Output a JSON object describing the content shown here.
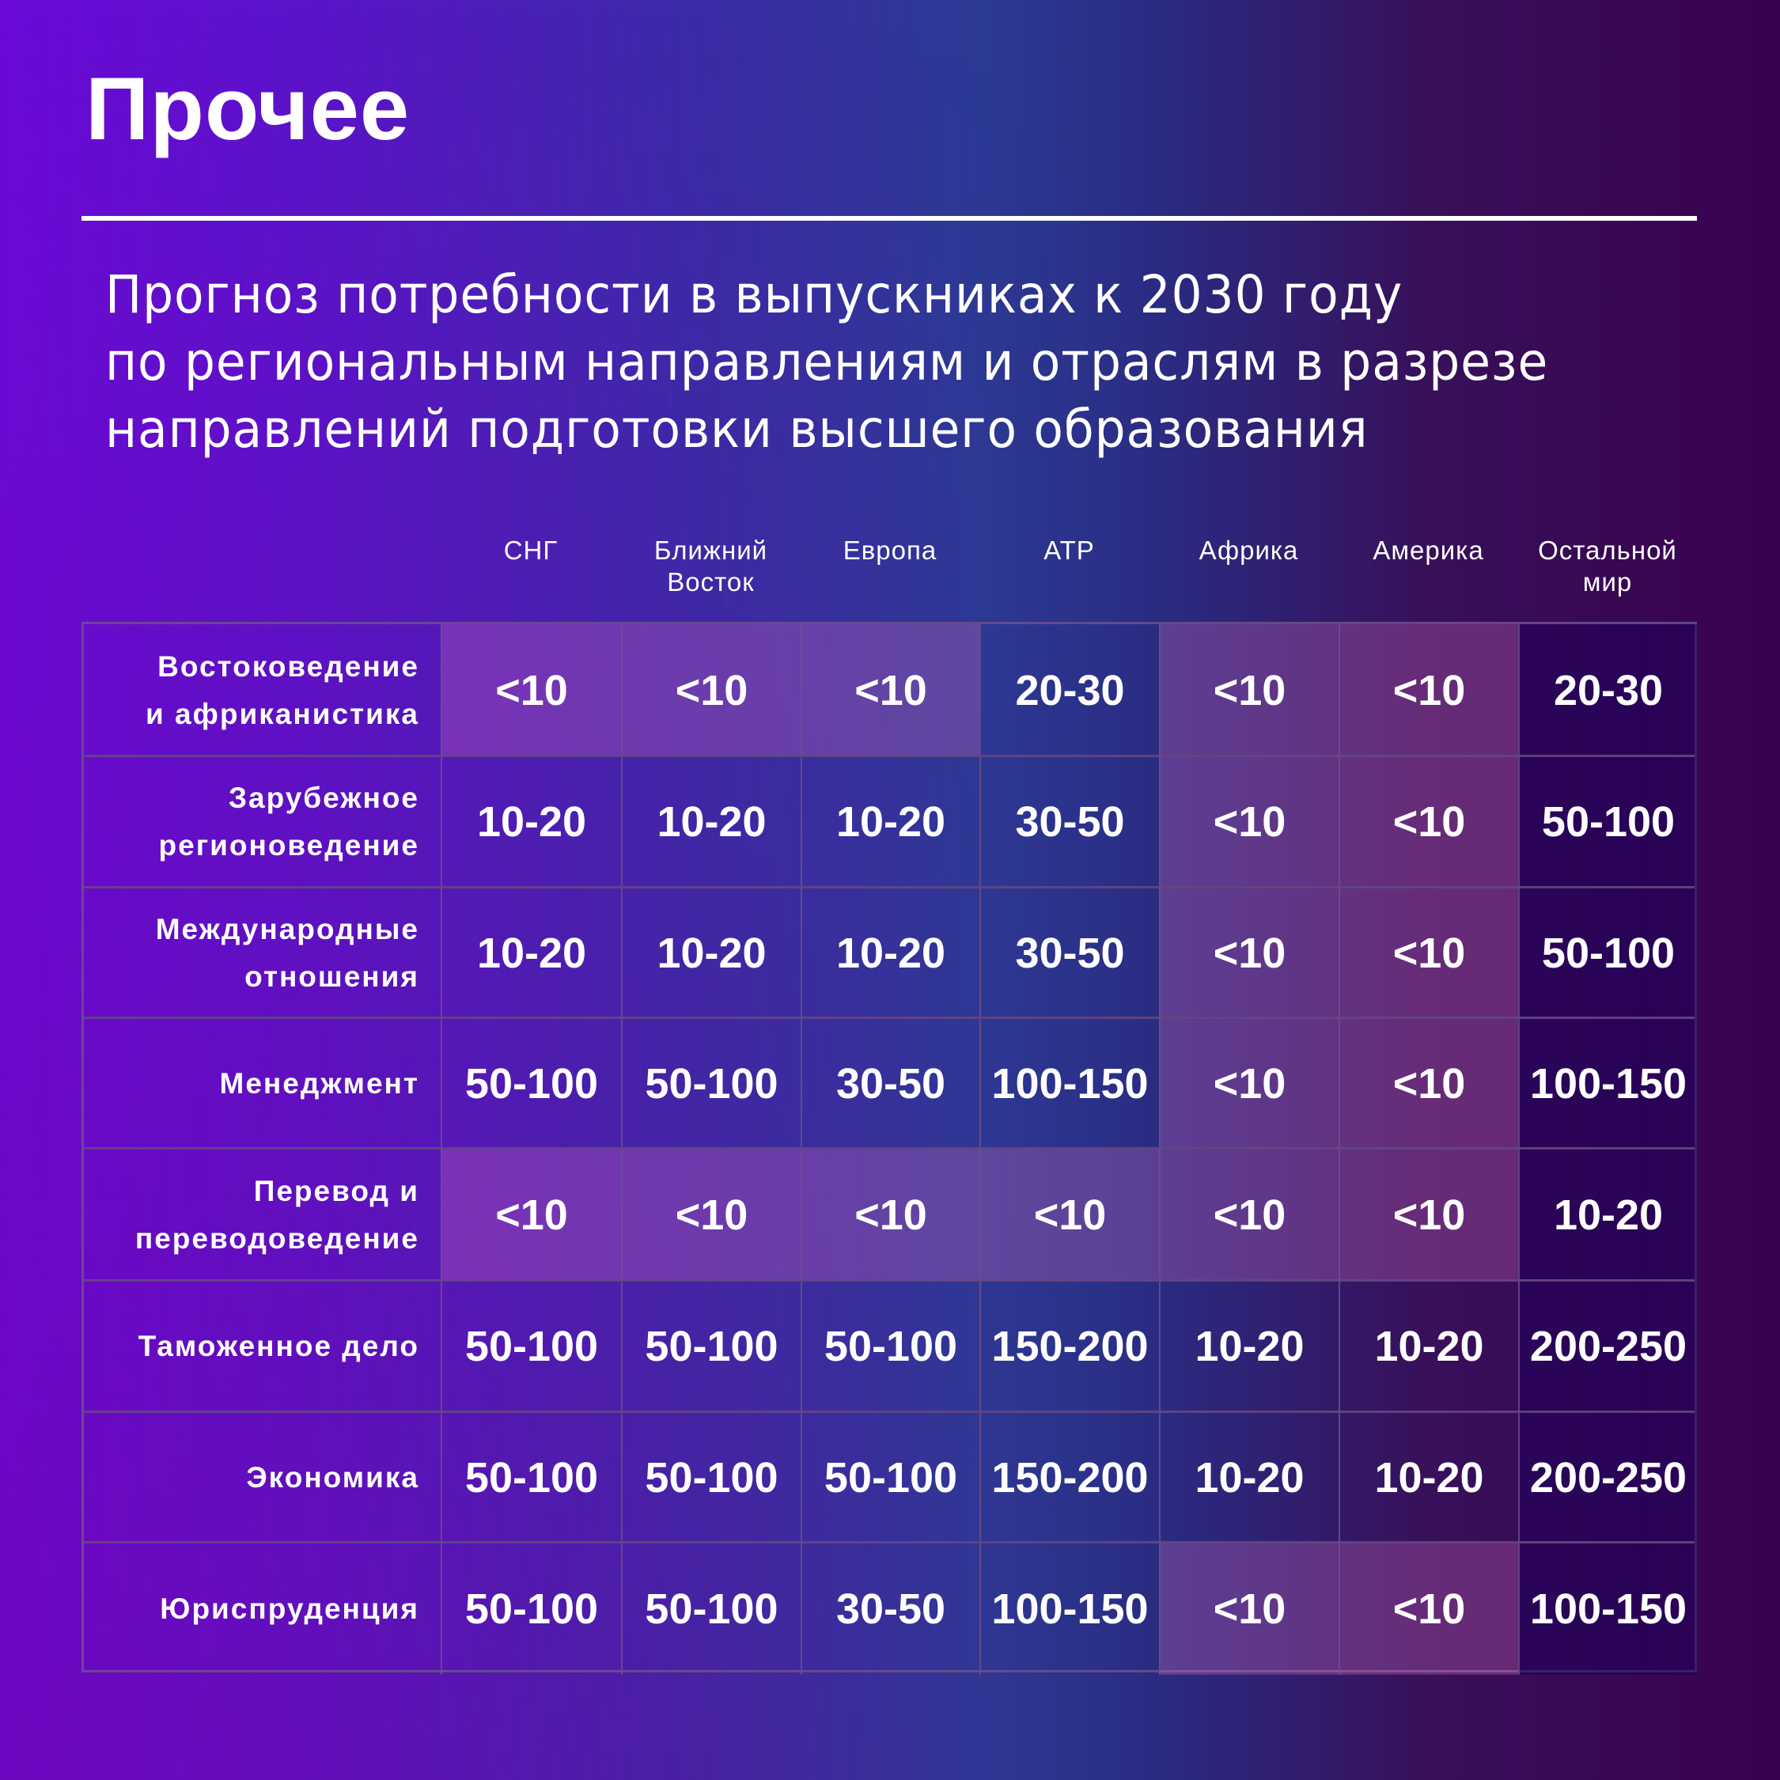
{
  "page": {
    "title": "Прочее",
    "subtitle_lines": [
      "Прогноз потребности в выпускниках к 2030 году",
      "по региональным направлениям и отраслям в разрезе",
      "направлений подготовки высшего образования"
    ]
  },
  "colors": {
    "text": "#ffffff",
    "bg_left": "#6a0ad8",
    "bg_center": "#2c3a94",
    "bg_right": "#3a0050",
    "grid_line": "#6e508c",
    "low_cell_overlay": "#d26ebe",
    "last_col_overlay": "#1e005a"
  },
  "table": {
    "columns": [
      {
        "line1": "СНГ",
        "line2": ""
      },
      {
        "line1": "Ближний",
        "line2": "Восток"
      },
      {
        "line1": "Европа",
        "line2": ""
      },
      {
        "line1": "АТР",
        "line2": ""
      },
      {
        "line1": "Африка",
        "line2": ""
      },
      {
        "line1": "Америка",
        "line2": ""
      },
      {
        "line1": "Остальной",
        "line2": "мир"
      }
    ],
    "rows": [
      {
        "label1": "Востоковедение",
        "label2": "и африканистика",
        "values": [
          "<10",
          "<10",
          "<10",
          "20-30",
          "<10",
          "<10",
          "20-30"
        ]
      },
      {
        "label1": "Зарубежное",
        "label2": "регионоведение",
        "values": [
          "10-20",
          "10-20",
          "10-20",
          "30-50",
          "<10",
          "<10",
          "50-100"
        ]
      },
      {
        "label1": "Международные",
        "label2": "отношения",
        "values": [
          "10-20",
          "10-20",
          "10-20",
          "30-50",
          "<10",
          "<10",
          "50-100"
        ]
      },
      {
        "label1": "Менеджмент",
        "label2": "",
        "values": [
          "50-100",
          "50-100",
          "30-50",
          "100-150",
          "<10",
          "<10",
          "100-150"
        ]
      },
      {
        "label1": "Перевод и",
        "label2": "переводоведение",
        "values": [
          "<10",
          "<10",
          "<10",
          "<10",
          "<10",
          "<10",
          "10-20"
        ]
      },
      {
        "label1": "Таможенное дело",
        "label2": "",
        "values": [
          "50-100",
          "50-100",
          "50-100",
          "150-200",
          "10-20",
          "10-20",
          "200-250"
        ]
      },
      {
        "label1": "Экономика",
        "label2": "",
        "values": [
          "50-100",
          "50-100",
          "50-100",
          "150-200",
          "10-20",
          "10-20",
          "200-250"
        ]
      },
      {
        "label1": "Юриспруденция",
        "label2": "",
        "values": [
          "50-100",
          "50-100",
          "30-50",
          "100-150",
          "<10",
          "<10",
          "100-150"
        ]
      }
    ]
  },
  "chart_data": {
    "type": "table",
    "title": "Прочее",
    "subtitle": "Прогноз потребности в выпускниках к 2030 году по региональным направлениям и отраслям в разрезе направлений подготовки высшего образования",
    "columns": [
      "СНГ",
      "Ближний Восток",
      "Европа",
      "АТР",
      "Африка",
      "Америка",
      "Остальной мир"
    ],
    "rows": [
      "Востоковедение и африканистика",
      "Зарубежное регионоведение",
      "Международные отношения",
      "Менеджмент",
      "Перевод и переводоведение",
      "Таможенное дело",
      "Экономика",
      "Юриспруденция"
    ],
    "values": [
      [
        "<10",
        "<10",
        "<10",
        "20-30",
        "<10",
        "<10",
        "20-30"
      ],
      [
        "10-20",
        "10-20",
        "10-20",
        "30-50",
        "<10",
        "<10",
        "50-100"
      ],
      [
        "10-20",
        "10-20",
        "10-20",
        "30-50",
        "<10",
        "<10",
        "50-100"
      ],
      [
        "50-100",
        "50-100",
        "30-50",
        "100-150",
        "<10",
        "<10",
        "100-150"
      ],
      [
        "<10",
        "<10",
        "<10",
        "<10",
        "<10",
        "<10",
        "10-20"
      ],
      [
        "50-100",
        "50-100",
        "50-100",
        "150-200",
        "10-20",
        "10-20",
        "200-250"
      ],
      [
        "50-100",
        "50-100",
        "50-100",
        "150-200",
        "10-20",
        "10-20",
        "200-250"
      ],
      [
        "50-100",
        "50-100",
        "30-50",
        "100-150",
        "<10",
        "<10",
        "100-150"
      ]
    ],
    "highlight_rule": "cells with <10 shaded lighter pink; 'Остальной мир' column shaded dark"
  }
}
